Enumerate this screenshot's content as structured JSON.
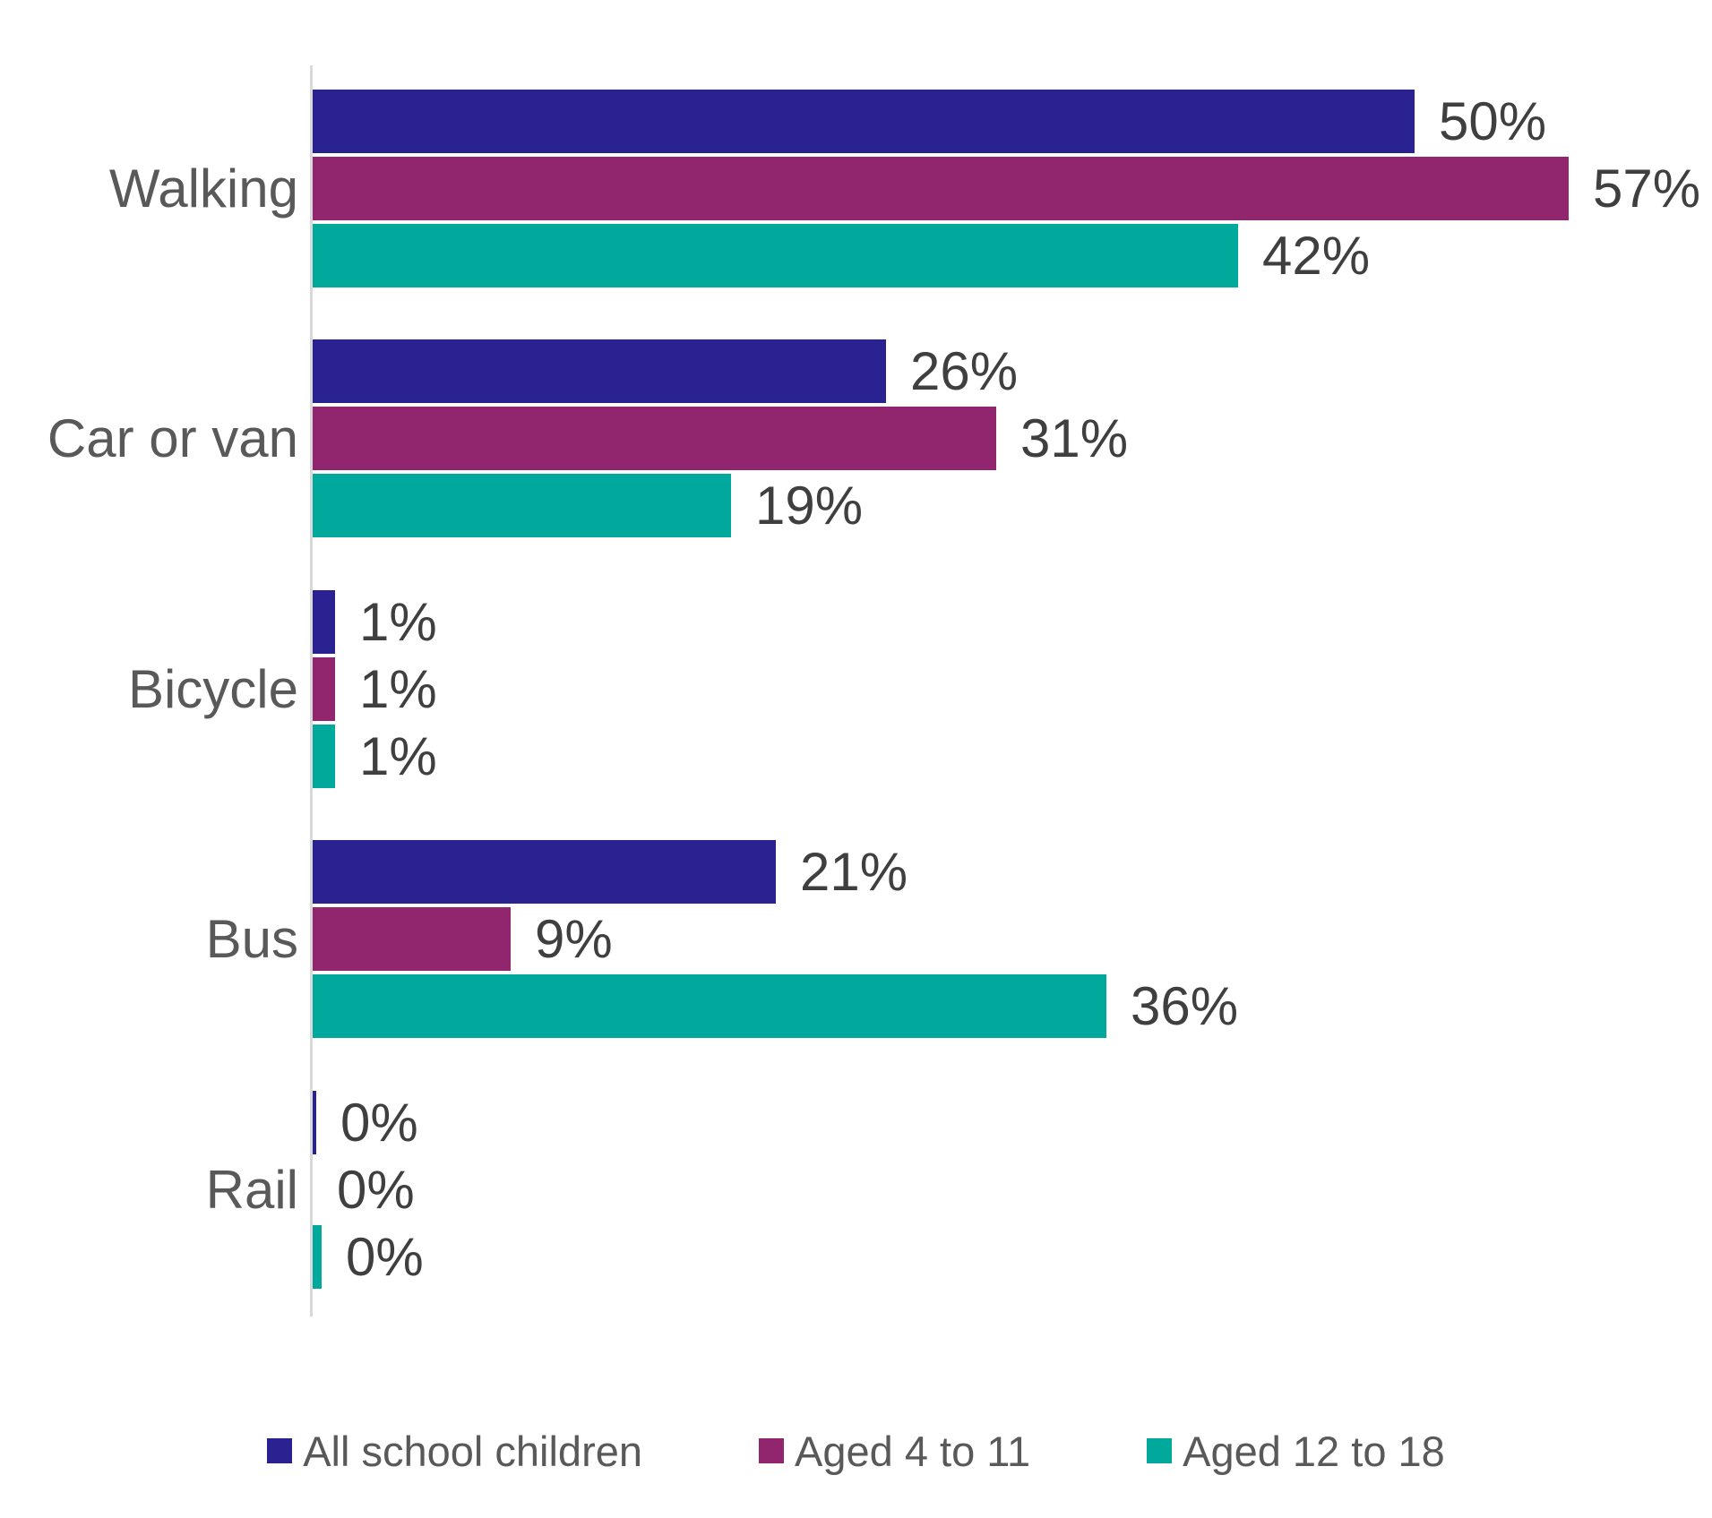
{
  "chart_data": {
    "type": "bar",
    "orientation": "horizontal",
    "title": "",
    "categories": [
      "Walking",
      "Car or van",
      "Bicycle",
      "Bus",
      "Rail"
    ],
    "series": [
      {
        "name": "All school children",
        "color": "#2A2290",
        "values": [
          50,
          26,
          1,
          21,
          0
        ],
        "labels": [
          "50%",
          "26%",
          "1%",
          "21%",
          "0%"
        ]
      },
      {
        "name": "Aged 4 to 11",
        "color": "#92266E",
        "values": [
          57,
          31,
          1,
          9,
          0
        ],
        "labels": [
          "57%",
          "31%",
          "1%",
          "9%",
          "0%"
        ]
      },
      {
        "name": "Aged 12 to 18",
        "color": "#00A99B",
        "values": [
          42,
          19,
          1,
          36,
          0
        ],
        "labels": [
          "42%",
          "19%",
          "1%",
          "36%",
          "0%"
        ]
      }
    ],
    "value_unit": "percent",
    "data_labels": true,
    "gridlines": false,
    "x_axis_visible": false,
    "legend_position": "bottom",
    "colors": {
      "axis_line": "#D9D9D9",
      "category_label_text": "#595959",
      "value_label_text": "#3F3F3F",
      "legend_text": "#595959",
      "background": "#FFFFFF"
    }
  }
}
